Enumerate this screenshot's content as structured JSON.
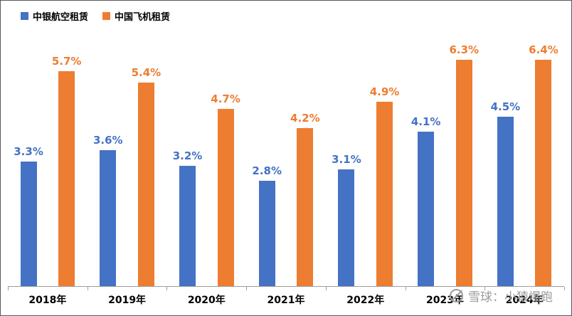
{
  "legend": {
    "items": [
      {
        "label": "中银航空租赁",
        "color": "#4472C4"
      },
      {
        "label": "中国飞机租赁",
        "color": "#ED7D31"
      }
    ]
  },
  "watermark": {
    "text": "雪球：小猿爆跑"
  },
  "chart_data": {
    "type": "bar",
    "categories": [
      "2018年",
      "2019年",
      "2020年",
      "2021年",
      "2022年",
      "2023年",
      "2024年"
    ],
    "series": [
      {
        "name": "中银航空租赁",
        "color": "#4472C4",
        "values": [
          3.3,
          3.6,
          3.2,
          2.8,
          3.1,
          4.1,
          4.5
        ]
      },
      {
        "name": "中国飞机租赁",
        "color": "#ED7D31",
        "values": [
          5.7,
          5.4,
          4.7,
          4.2,
          4.9,
          6.3,
          6.4
        ]
      }
    ],
    "data_labels": [
      [
        "3.3%",
        "3.6%",
        "3.2%",
        "2.8%",
        "3.1%",
        "4.1%",
        "4.5%"
      ],
      [
        "5.7%",
        "5.4%",
        "4.7%",
        "4.2%",
        "4.9%",
        "6.3%",
        "6.4%"
      ]
    ],
    "title": "",
    "xlabel": "",
    "ylabel": "",
    "ylim": [
      0,
      6.5
    ],
    "grid": false,
    "legend_position": "top-left"
  }
}
